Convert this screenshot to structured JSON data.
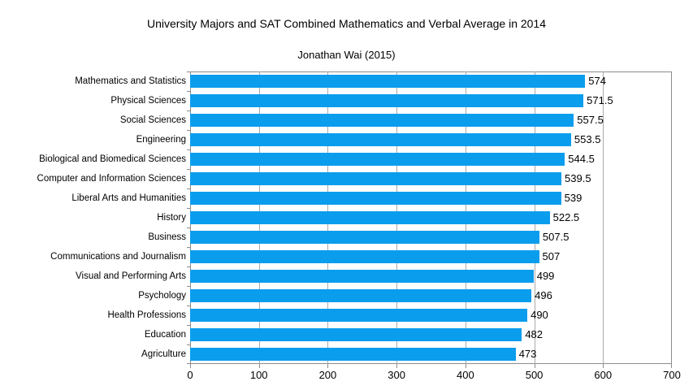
{
  "chart_data": {
    "type": "bar",
    "orientation": "horizontal",
    "title": "University Majors and SAT Combined Mathematics and Verbal Average in 2014",
    "subtitle": "Jonathan Wai (2015)",
    "categories": [
      "Mathematics and Statistics",
      "Physical Sciences",
      "Social Sciences",
      "Engineering",
      "Biological and Biomedical Sciences",
      "Computer and Information Sciences",
      "Liberal Arts and Humanities",
      "History",
      "Business",
      "Communications and Journalism",
      "Visual and Performing Arts",
      "Psychology",
      "Health Professions",
      "Education",
      "Agriculture"
    ],
    "values": [
      574,
      571.5,
      557.5,
      553.5,
      544.5,
      539.5,
      539,
      522.5,
      507.5,
      507,
      499,
      496,
      490,
      482,
      473
    ],
    "xlabel": "",
    "ylabel": "",
    "xlim": [
      0,
      700
    ],
    "x_ticks": [
      0,
      100,
      200,
      300,
      400,
      500,
      600,
      700
    ],
    "grid": true,
    "legend": "none",
    "bar_color": "#0b9ded",
    "axis_color": "#8c8c8c",
    "gridline_color": "#ababab",
    "background_color": "#ffffff",
    "text_color": "#000000"
  }
}
